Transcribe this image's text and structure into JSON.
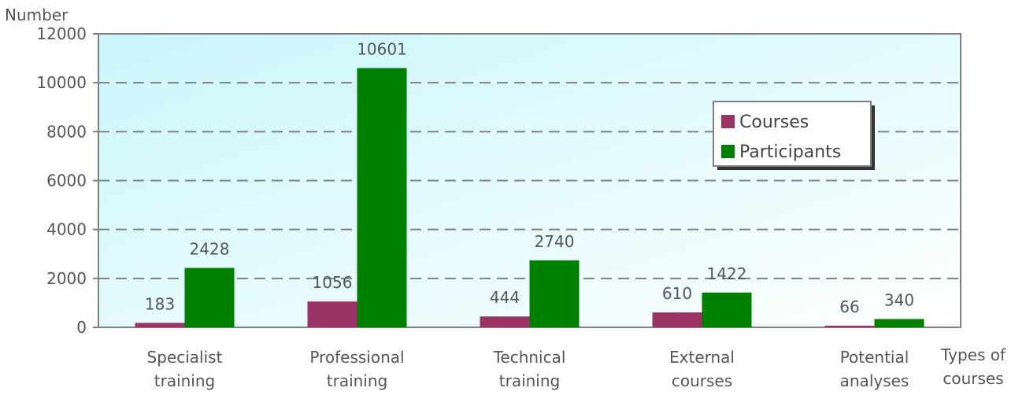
{
  "chart_data": {
    "type": "bar",
    "ylabel": "Number",
    "xlabel": "Types of courses",
    "ylim": [
      0,
      12000
    ],
    "yticks": [
      0,
      2000,
      4000,
      6000,
      8000,
      10000,
      12000
    ],
    "grid": "horizontal dashed",
    "legend_position": "right",
    "categories": [
      [
        "Specialist",
        "training"
      ],
      [
        "Professional",
        "training"
      ],
      [
        "Technical",
        "training"
      ],
      [
        "External",
        "courses"
      ],
      [
        "Potential",
        "analyses"
      ]
    ],
    "series": [
      {
        "name": "Courses",
        "color": "#993366",
        "values": [
          183,
          1056,
          444,
          610,
          66
        ]
      },
      {
        "name": "Participants",
        "color": "#008000",
        "values": [
          2428,
          10601,
          2740,
          1422,
          340
        ]
      }
    ]
  }
}
